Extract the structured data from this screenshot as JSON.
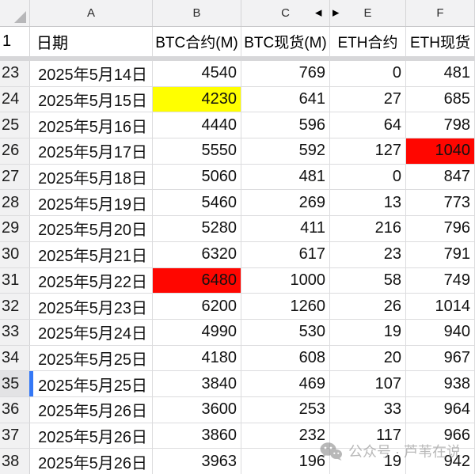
{
  "sheet": {
    "column_letters": [
      "A",
      "B",
      "C",
      "E",
      "F"
    ],
    "hidden_column_between": "C/E",
    "header_row": {
      "row_number": "1",
      "date_label": "日期",
      "btc_contract_label": "BTC合约(M)",
      "btc_spot_label": "BTC现货(M)",
      "eth_contract_label": "ETH合约",
      "eth_spot_label": "ETH现货"
    },
    "rows": [
      {
        "n": "23",
        "date": "2025年5月14日",
        "b": "4540",
        "c": "769",
        "e": "0",
        "f": "481"
      },
      {
        "n": "24",
        "date": "2025年5月15日",
        "b": "4230",
        "c": "641",
        "e": "27",
        "f": "685",
        "highlight_col": "b",
        "highlight": "yellow"
      },
      {
        "n": "25",
        "date": "2025年5月16日",
        "b": "4440",
        "c": "596",
        "e": "64",
        "f": "798"
      },
      {
        "n": "26",
        "date": "2025年5月17日",
        "b": "5550",
        "c": "592",
        "e": "127",
        "f": "1040",
        "highlight_col": "f",
        "highlight": "red"
      },
      {
        "n": "27",
        "date": "2025年5月18日",
        "b": "5060",
        "c": "481",
        "e": "0",
        "f": "847"
      },
      {
        "n": "28",
        "date": "2025年5月19日",
        "b": "5460",
        "c": "269",
        "e": "13",
        "f": "773"
      },
      {
        "n": "29",
        "date": "2025年5月20日",
        "b": "5280",
        "c": "411",
        "e": "216",
        "f": "796"
      },
      {
        "n": "30",
        "date": "2025年5月21日",
        "b": "6320",
        "c": "617",
        "e": "23",
        "f": "791"
      },
      {
        "n": "31",
        "date": "2025年5月22日",
        "b": "6480",
        "c": "1000",
        "e": "58",
        "f": "749",
        "highlight_col": "b",
        "highlight": "red"
      },
      {
        "n": "32",
        "date": "2025年5月23日",
        "b": "6200",
        "c": "1260",
        "e": "26",
        "f": "1014"
      },
      {
        "n": "33",
        "date": "2025年5月24日",
        "b": "4990",
        "c": "530",
        "e": "19",
        "f": "940"
      },
      {
        "n": "34",
        "date": "2025年5月25日",
        "b": "4180",
        "c": "608",
        "e": "20",
        "f": "967"
      },
      {
        "n": "35",
        "date": "2025年5月25日",
        "b": "3840",
        "c": "469",
        "e": "107",
        "f": "938",
        "selected": true
      },
      {
        "n": "36",
        "date": "2025年5月26日",
        "b": "3600",
        "c": "253",
        "e": "33",
        "f": "964"
      },
      {
        "n": "37",
        "date": "2025年5月26日",
        "b": "3860",
        "c": "232",
        "e": "117",
        "f": "966"
      },
      {
        "n": "38",
        "date": "2025年5月26日",
        "b": "3963",
        "c": "196",
        "e": "19",
        "f": "942"
      }
    ],
    "colors": {
      "yellow_highlight": "#FFFF00",
      "red_highlight": "#FF0600",
      "selection_bar_blue": "#3478F6",
      "header_gray": "#F2F2F3",
      "row_header_gray": "#F1F1F2",
      "selected_row_header_gray": "#E3E3E5",
      "grid_line": "#DCDCDE"
    }
  },
  "icons": {
    "hidden_column_left_arrow": "◀",
    "hidden_column_right_arrow": "▶"
  },
  "watermark": {
    "text": "公众号 · 芦苇在说"
  }
}
